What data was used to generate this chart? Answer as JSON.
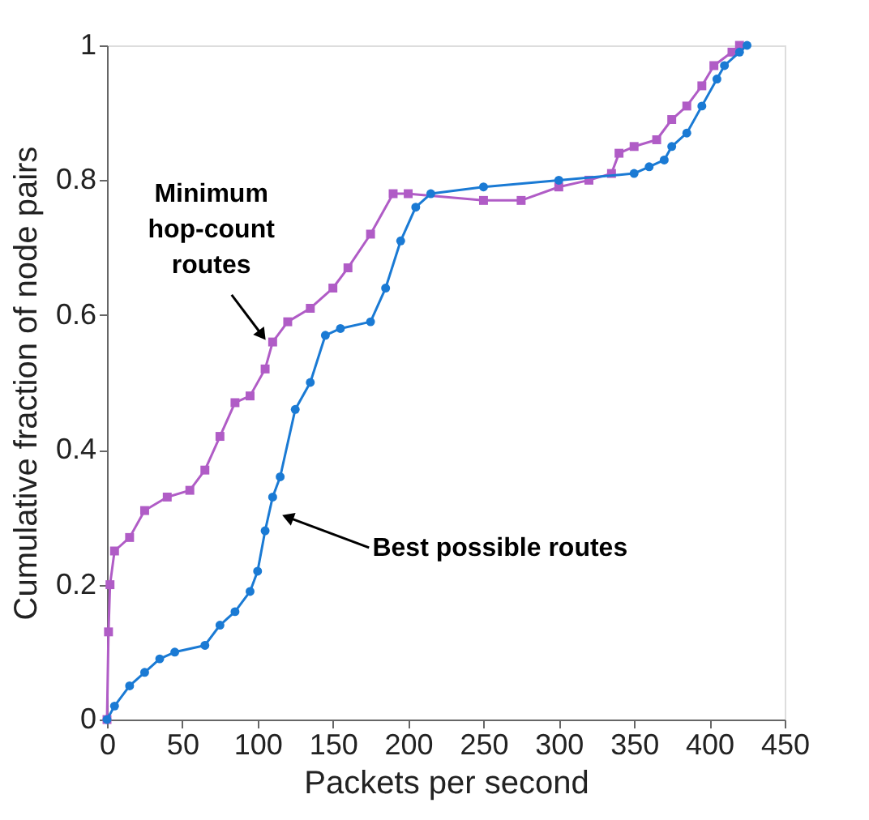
{
  "chart_data": {
    "type": "line",
    "xlabel": "Packets per second",
    "ylabel": "Cumulative fraction of node pairs",
    "xlim": [
      0,
      450
    ],
    "xticks": [
      0,
      50,
      100,
      150,
      200,
      250,
      300,
      350,
      400,
      450
    ],
    "ylim": [
      0,
      1
    ],
    "yticks": [
      0,
      0.2,
      0.4,
      0.6,
      0.8,
      1
    ],
    "grid": false,
    "line_style": "solid",
    "series": [
      {
        "color": "#b05cc6",
        "marker": "square",
        "x": [
          0,
          1,
          2,
          5,
          15,
          25,
          40,
          55,
          65,
          75,
          85,
          95,
          105,
          110,
          120,
          135,
          150,
          160,
          175,
          190,
          200,
          250,
          275,
          300,
          320,
          335,
          340,
          350,
          365,
          375,
          385,
          395,
          403,
          415,
          420
        ],
        "values": [
          0,
          0.13,
          0.2,
          0.25,
          0.27,
          0.31,
          0.33,
          0.34,
          0.37,
          0.42,
          0.47,
          0.48,
          0.52,
          0.56,
          0.59,
          0.61,
          0.64,
          0.67,
          0.72,
          0.78,
          0.78,
          0.77,
          0.77,
          0.79,
          0.8,
          0.81,
          0.84,
          0.85,
          0.86,
          0.89,
          0.91,
          0.94,
          0.97,
          0.99,
          1.0
        ]
      },
      {
        "color": "#1a7ad4",
        "marker": "circle",
        "x": [
          0,
          5,
          15,
          25,
          35,
          45,
          65,
          75,
          85,
          95,
          100,
          105,
          110,
          115,
          125,
          135,
          145,
          155,
          175,
          185,
          195,
          205,
          215,
          250,
          300,
          350,
          360,
          370,
          375,
          385,
          395,
          405,
          410,
          420,
          425
        ],
        "values": [
          0,
          0.02,
          0.05,
          0.07,
          0.09,
          0.1,
          0.11,
          0.14,
          0.16,
          0.19,
          0.22,
          0.28,
          0.33,
          0.36,
          0.46,
          0.5,
          0.57,
          0.58,
          0.59,
          0.64,
          0.71,
          0.76,
          0.78,
          0.79,
          0.8,
          0.81,
          0.82,
          0.83,
          0.85,
          0.87,
          0.91,
          0.95,
          0.97,
          0.99,
          1.0
        ]
      }
    ],
    "annotations": [
      {
        "text": "Minimum\nhop-count\nroutes",
        "x": 103,
        "y": 0.57
      },
      {
        "text": "Best possible routes",
        "x": 120,
        "y": 0.3
      }
    ]
  }
}
